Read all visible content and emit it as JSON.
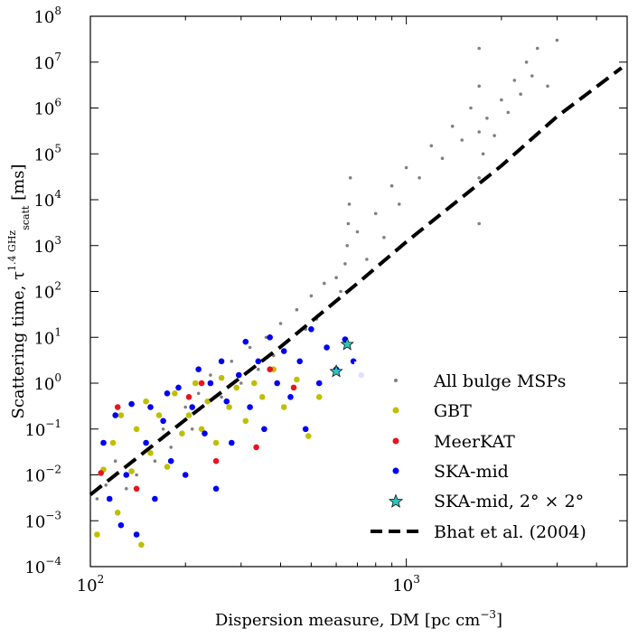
{
  "chart_data": {
    "type": "scatter",
    "xscale": "log",
    "yscale": "log",
    "xlim": [
      100,
      5000
    ],
    "ylim": [
      0.0001,
      100000000
    ],
    "xlabel": "Dispersion measure, DM [pc cm",
    "xlabel_exp": "−3",
    "xlabel_end": "]",
    "ylabel": "Scattering time, τ",
    "ylabel_sub": "scatt",
    "ylabel_sup": "1.4 GHz",
    "ylabel_end": " [ms]",
    "x_ticks": [
      {
        "value": 100,
        "base": "10",
        "exp": "2"
      },
      {
        "value": 1000,
        "base": "10",
        "exp": "3"
      }
    ],
    "y_ticks": [
      {
        "value": 0.0001,
        "base": "10",
        "exp": "−4"
      },
      {
        "value": 0.001,
        "base": "10",
        "exp": "−3"
      },
      {
        "value": 0.01,
        "base": "10",
        "exp": "−2"
      },
      {
        "value": 0.1,
        "base": "10",
        "exp": "−1"
      },
      {
        "value": 1,
        "base": "10",
        "exp": "0"
      },
      {
        "value": 10,
        "base": "10",
        "exp": "1"
      },
      {
        "value": 100,
        "base": "10",
        "exp": "2"
      },
      {
        "value": 1000,
        "base": "10",
        "exp": "3"
      },
      {
        "value": 10000,
        "base": "10",
        "exp": "4"
      },
      {
        "value": 100000,
        "base": "10",
        "exp": "5"
      },
      {
        "value": 1000000,
        "base": "10",
        "exp": "6"
      },
      {
        "value": 10000000,
        "base": "10",
        "exp": "7"
      },
      {
        "value": 100000000,
        "base": "10",
        "exp": "8"
      }
    ],
    "legend_position": "lower-right",
    "series": [
      {
        "name": "All bulge MSPs",
        "kind": "dots",
        "color": "#808080",
        "points": [
          [
            105,
            0.003
          ],
          [
            112,
            0.006
          ],
          [
            120,
            0.02
          ],
          [
            130,
            0.005
          ],
          [
            140,
            0.01
          ],
          [
            150,
            0.05
          ],
          [
            160,
            0.02
          ],
          [
            170,
            0.1
          ],
          [
            180,
            0.04
          ],
          [
            200,
            0.3
          ],
          [
            210,
            0.1
          ],
          [
            220,
            0.6
          ],
          [
            240,
            1.5
          ],
          [
            260,
            0.5
          ],
          [
            280,
            3
          ],
          [
            300,
            1
          ],
          [
            320,
            6
          ],
          [
            340,
            2
          ],
          [
            360,
            10
          ],
          [
            380,
            4
          ],
          [
            400,
            20
          ],
          [
            420,
            8
          ],
          [
            450,
            40
          ],
          [
            480,
            15
          ],
          [
            500,
            80
          ],
          [
            520,
            25
          ],
          [
            550,
            150
          ],
          [
            580,
            50
          ],
          [
            600,
            200
          ],
          [
            620,
            100
          ],
          [
            640,
            400
          ],
          [
            650,
            1000
          ],
          [
            655,
            3000
          ],
          [
            660,
            8000
          ],
          [
            665,
            30000
          ],
          [
            700,
            2000
          ],
          [
            750,
            500
          ],
          [
            800,
            5000
          ],
          [
            850,
            1500
          ],
          [
            900,
            20000
          ],
          [
            950,
            8000
          ],
          [
            1000,
            50000
          ],
          [
            1100,
            30000
          ],
          [
            1200,
            150000
          ],
          [
            1300,
            80000
          ],
          [
            1400,
            400000
          ],
          [
            1500,
            200000
          ],
          [
            1600,
            1000000
          ],
          [
            1700,
            3000
          ],
          [
            1700,
            30000
          ],
          [
            1700,
            300000
          ],
          [
            1700,
            3000000
          ],
          [
            1700,
            20000000
          ],
          [
            1750,
            100000
          ],
          [
            1800,
            600000
          ],
          [
            1900,
            250000
          ],
          [
            2000,
            1500000
          ],
          [
            2100,
            800000
          ],
          [
            2200,
            4000000
          ],
          [
            2300,
            2000000
          ],
          [
            2400,
            10000000
          ],
          [
            2500,
            5000000
          ],
          [
            2600,
            20000000
          ],
          [
            2800,
            3000000
          ],
          [
            3000,
            30000000
          ]
        ]
      },
      {
        "name": "GBT",
        "kind": "dots",
        "color": "#bfbf00",
        "points": [
          [
            105,
            0.0005
          ],
          [
            110,
            0.013
          ],
          [
            118,
            0.05
          ],
          [
            122,
            0.0015
          ],
          [
            125,
            0.2
          ],
          [
            135,
            0.012
          ],
          [
            140,
            0.1
          ],
          [
            145,
            0.0003
          ],
          [
            150,
            0.4
          ],
          [
            155,
            0.03
          ],
          [
            165,
            0.2
          ],
          [
            175,
            0.015
          ],
          [
            185,
            0.6
          ],
          [
            195,
            0.08
          ],
          [
            205,
            0.2
          ],
          [
            215,
            1.0
          ],
          [
            225,
            0.1
          ],
          [
            235,
            0.4
          ],
          [
            250,
            0.05
          ],
          [
            260,
            1.3
          ],
          [
            275,
            0.3
          ],
          [
            290,
            0.8
          ],
          [
            310,
            0.15
          ],
          [
            330,
            1.0
          ],
          [
            350,
            0.5
          ],
          [
            380,
            2.0
          ],
          [
            410,
            0.3
          ],
          [
            450,
            1.2
          ],
          [
            490,
            0.07
          ],
          [
            530,
            0.5
          ]
        ]
      },
      {
        "name": "MeerKAT",
        "kind": "dots",
        "color": "#e8141e",
        "points": [
          [
            108,
            0.011
          ],
          [
            122,
            0.3
          ],
          [
            140,
            0.005
          ],
          [
            205,
            0.5
          ],
          [
            225,
            1.0
          ],
          [
            250,
            0.02
          ],
          [
            335,
            0.04
          ],
          [
            370,
            2.0
          ],
          [
            440,
            0.8
          ]
        ]
      },
      {
        "name": "SKA-mid",
        "kind": "dots",
        "color": "#0000f5",
        "points": [
          [
            110,
            0.05
          ],
          [
            115,
            0.003
          ],
          [
            120,
            0.2
          ],
          [
            125,
            0.0008
          ],
          [
            130,
            0.01
          ],
          [
            135,
            0.35
          ],
          [
            140,
            0.0005
          ],
          [
            150,
            0.05
          ],
          [
            155,
            0.3
          ],
          [
            160,
            0.003
          ],
          [
            170,
            0.15
          ],
          [
            175,
            0.6
          ],
          [
            180,
            0.02
          ],
          [
            190,
            0.8
          ],
          [
            200,
            0.01
          ],
          [
            210,
            0.3
          ],
          [
            220,
            2.0
          ],
          [
            230,
            0.08
          ],
          [
            240,
            1.0
          ],
          [
            250,
            0.005
          ],
          [
            260,
            3.0
          ],
          [
            270,
            0.4
          ],
          [
            280,
            0.05
          ],
          [
            295,
            1.5
          ],
          [
            310,
            8.0
          ],
          [
            320,
            0.3
          ],
          [
            340,
            3.0
          ],
          [
            355,
            0.1
          ],
          [
            370,
            10
          ],
          [
            390,
            1.0
          ],
          [
            410,
            5.0
          ],
          [
            430,
            0.5
          ],
          [
            460,
            3.0
          ],
          [
            480,
            0.1
          ],
          [
            500,
            15
          ],
          [
            530,
            1.0
          ],
          [
            560,
            6.0
          ],
          [
            600,
            2.0
          ],
          [
            640,
            9.0
          ],
          [
            680,
            3.0
          ],
          [
            720,
            1.5
          ]
        ]
      },
      {
        "name": "SKA-mid, 2° × 2°",
        "kind": "star",
        "color": "#2ec4b6",
        "points": [
          [
            600,
            1.8
          ],
          [
            650,
            7.0
          ]
        ]
      },
      {
        "name": "Bhat et al. (2004)",
        "kind": "dashed-line",
        "color": "#000000",
        "points": [
          [
            100,
            0.0037
          ],
          [
            200,
            0.16
          ],
          [
            400,
            6.2
          ],
          [
            700,
            150
          ],
          [
            1000,
            1200
          ],
          [
            2000,
            55000
          ],
          [
            3000,
            650000
          ],
          [
            4800,
            7500000
          ]
        ]
      }
    ]
  }
}
